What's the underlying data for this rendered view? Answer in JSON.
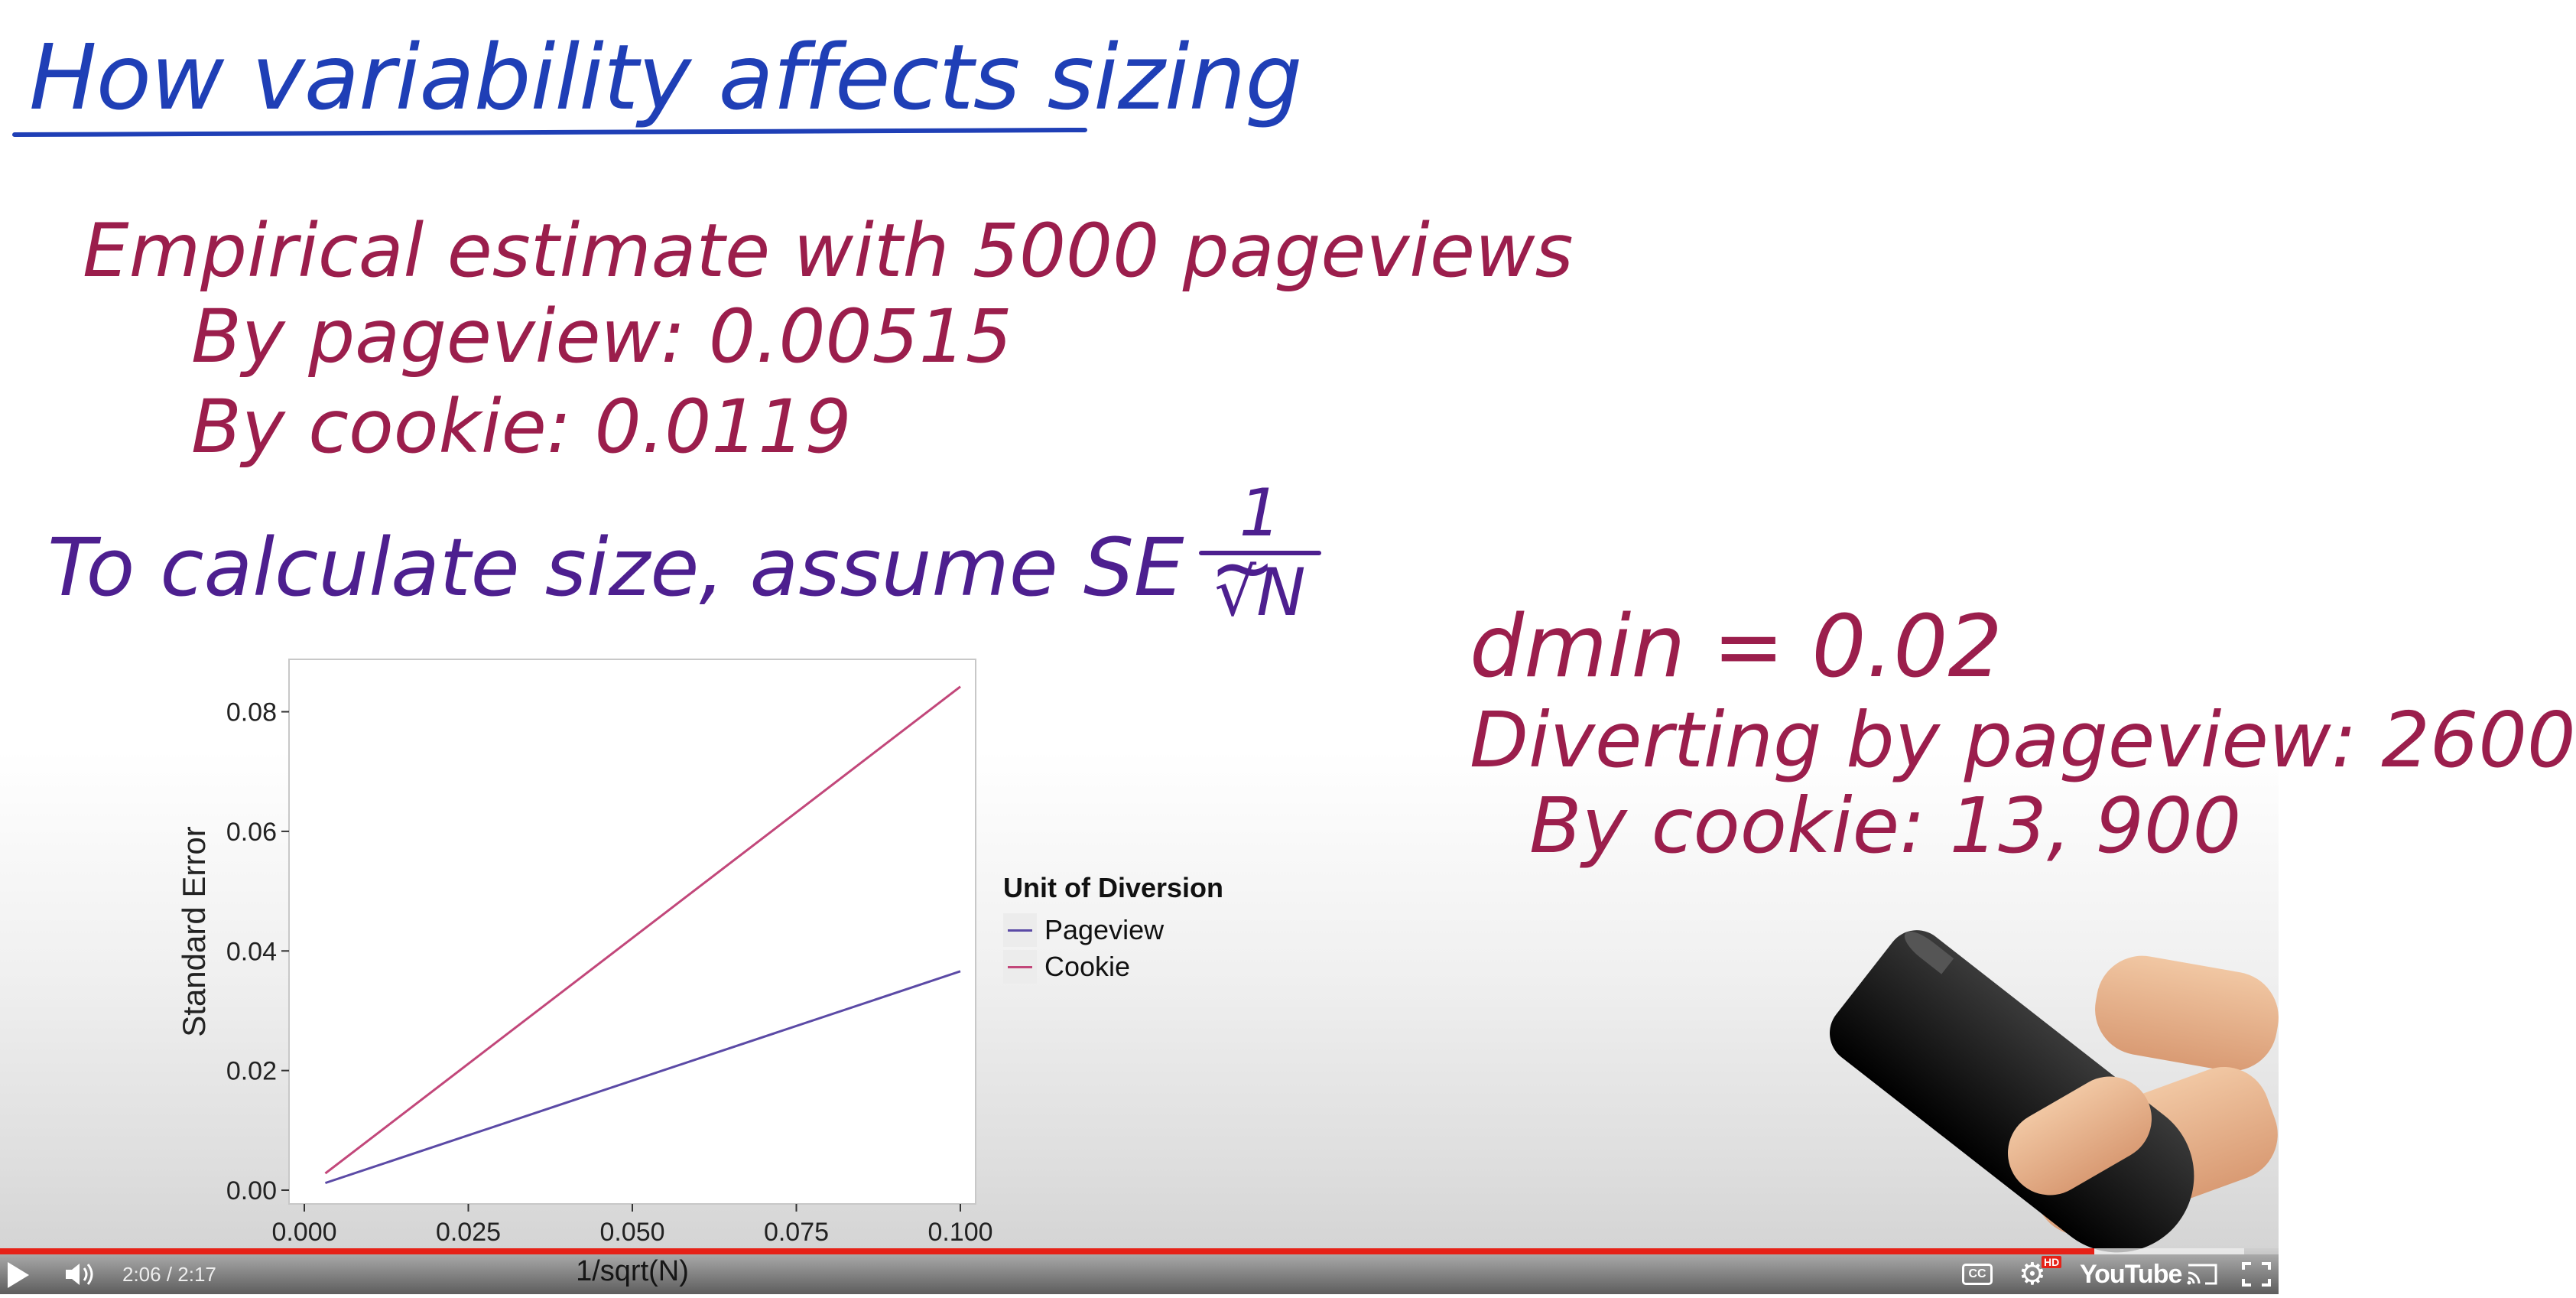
{
  "slide": {
    "title": "How variability affects sizing",
    "empirical_heading": "Empirical estimate with 5000 pageviews",
    "by_pageview": "By pageview: 0.00515",
    "by_cookie": "By cookie: 0.0119",
    "calc_line": "To calculate size, assume SE ~",
    "frac_numerator": "1",
    "frac_denominator": "√N",
    "dmin": "dmin = 0.02",
    "diverting_pageview": "Diverting by pageview: 2600",
    "diverting_cookie": "By cookie: 13, 900"
  },
  "colors": {
    "title_blue": "#1f3fb6",
    "maroon_ink": "#9b1e4c",
    "purple_ink": "#4d1f8f",
    "pageview_line": "#5b4aa6",
    "cookie_line": "#c2477a",
    "progress_red": "#e62117"
  },
  "chart_data": {
    "type": "line",
    "xlabel": "1/sqrt(N)",
    "ylabel": "Standard Error",
    "xlim": [
      0.0,
      0.1
    ],
    "ylim": [
      0.0,
      0.088
    ],
    "xticks": [
      "0.000",
      "0.025",
      "0.050",
      "0.075",
      "0.100"
    ],
    "yticks": [
      "0.00",
      "0.02",
      "0.04",
      "0.06",
      "0.08"
    ],
    "xtick_values": [
      0.0,
      0.025,
      0.05,
      0.075,
      0.1
    ],
    "ytick_values": [
      0.0,
      0.02,
      0.04,
      0.06,
      0.08
    ],
    "grid": false,
    "legend_position": "right",
    "legend_title": "Unit of Diversion",
    "series": [
      {
        "name": "Pageview",
        "x": [
          0.0032,
          0.1
        ],
        "y": [
          0.0012,
          0.0366
        ]
      },
      {
        "name": "Cookie",
        "x": [
          0.0032,
          0.1
        ],
        "y": [
          0.0028,
          0.0842
        ]
      }
    ]
  },
  "player": {
    "time": "2:06 / 2:17",
    "progress_fraction": 0.919,
    "loaded_fraction": 0.985,
    "cc_label": "CC",
    "hd_label": "HD",
    "logo": "YouTube",
    "icons": [
      "play-icon",
      "volume-icon",
      "cc-icon",
      "gear-icon",
      "cast-icon",
      "fullscreen-icon"
    ]
  }
}
